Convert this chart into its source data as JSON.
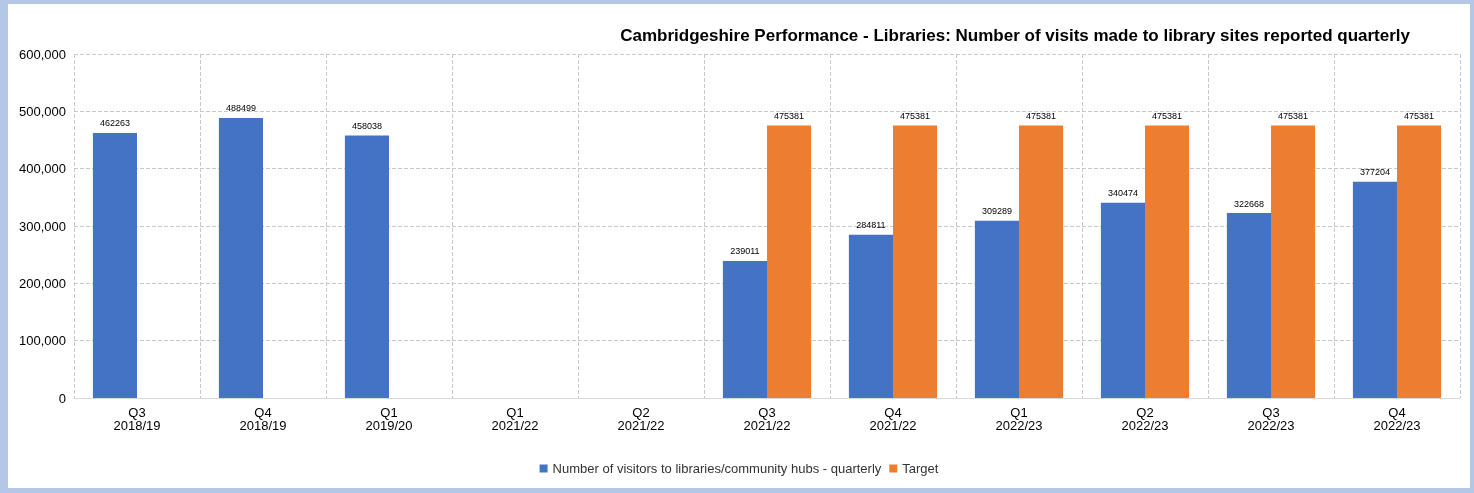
{
  "chart_data": {
    "type": "bar",
    "title": "Cambridgeshire Performance - Libraries: Number of visits made to library sites reported quarterly",
    "categories": [
      "Q3\n2018/19",
      "Q4\n2018/19",
      "Q1\n2019/20",
      "Q1\n2021/22",
      "Q2\n2021/22",
      "Q3\n2021/22",
      "Q4\n2021/22",
      "Q1\n2022/23",
      "Q2\n2022/23",
      "Q3\n2022/23",
      "Q4\n2022/23"
    ],
    "series": [
      {
        "name": "Number of visitors to libraries/community hubs - quarterly",
        "color": "#4472c4",
        "values": [
          462263,
          488499,
          458038,
          null,
          null,
          239011,
          284811,
          309289,
          340474,
          322668,
          377204
        ]
      },
      {
        "name": "Target",
        "color": "#ed7d31",
        "values": [
          null,
          null,
          null,
          null,
          null,
          475381,
          475381,
          475381,
          475381,
          475381,
          475381
        ]
      }
    ],
    "ylim": [
      0,
      600000
    ],
    "yticks": [
      0,
      {
        "value": 100000,
        "label": "100,000"
      },
      {
        "value": 200000,
        "label": "200,000"
      },
      {
        "value": 300000,
        "label": "300,000"
      },
      {
        "value": 400000,
        "label": "400,000"
      },
      {
        "value": 500000,
        "label": "500,000"
      },
      {
        "value": 600000,
        "label": "600,000"
      }
    ],
    "grid": true,
    "legend": "bottom",
    "data_labels": true
  }
}
